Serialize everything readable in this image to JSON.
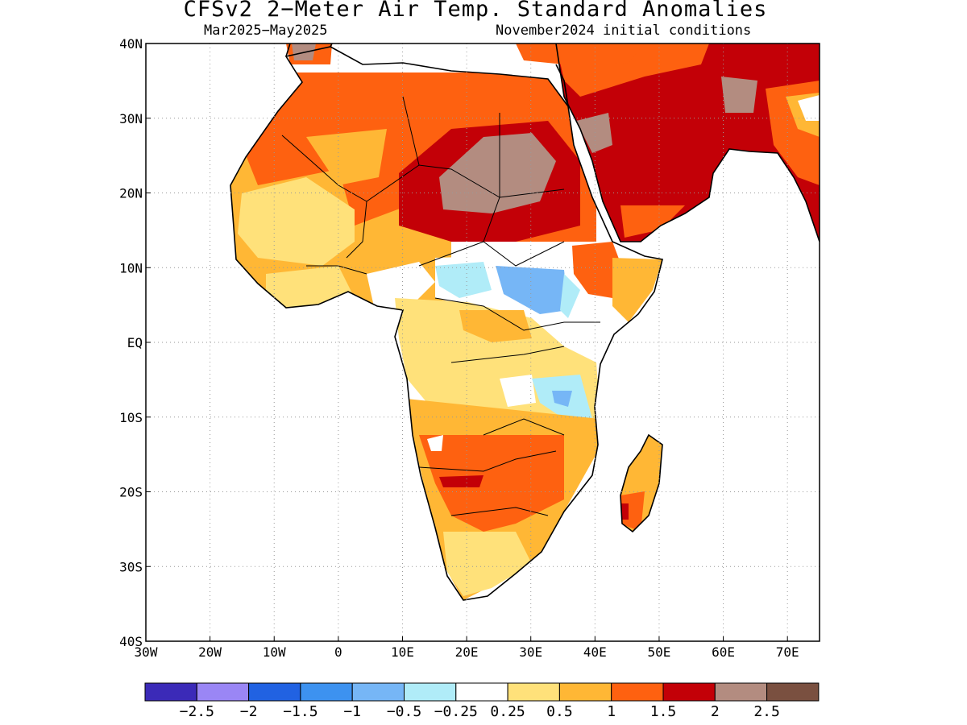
{
  "title": "CFSv2 2−Meter Air Temp. Standard Anomalies",
  "subtitle_left": "Mar2025−May2025",
  "subtitle_right": "November2024 initial conditions",
  "map": {
    "lon_range": [
      -30,
      75
    ],
    "lat_range": [
      -40,
      40
    ],
    "grid": true,
    "lon_ticks": [
      {
        "value": -30,
        "label": "30W"
      },
      {
        "value": -20,
        "label": "20W"
      },
      {
        "value": -10,
        "label": "10W"
      },
      {
        "value": 0,
        "label": "0"
      },
      {
        "value": 10,
        "label": "10E"
      },
      {
        "value": 20,
        "label": "20E"
      },
      {
        "value": 30,
        "label": "30E"
      },
      {
        "value": 40,
        "label": "40E"
      },
      {
        "value": 50,
        "label": "50E"
      },
      {
        "value": 60,
        "label": "60E"
      },
      {
        "value": 70,
        "label": "70E"
      }
    ],
    "lat_ticks": [
      {
        "value": 40,
        "label": "40N"
      },
      {
        "value": 30,
        "label": "30N"
      },
      {
        "value": 20,
        "label": "20N"
      },
      {
        "value": 10,
        "label": "10N"
      },
      {
        "value": 0,
        "label": "EQ"
      },
      {
        "value": -10,
        "label": "10S"
      },
      {
        "value": -20,
        "label": "20S"
      },
      {
        "value": -30,
        "label": "30S"
      },
      {
        "value": -40,
        "label": "40S"
      }
    ]
  },
  "colorbar": {
    "colors": [
      "#3b2ab8",
      "#9a86f5",
      "#2162e2",
      "#3d92f0",
      "#76b6f6",
      "#b0ecf8",
      "#ffffff",
      "#ffe17a",
      "#ffb735",
      "#fe6110",
      "#c30007",
      "#b38c80",
      "#7a5040"
    ],
    "labels": [
      "−2.5",
      "−2",
      "−1.5",
      "−1",
      "−0.5",
      "−0.25",
      "0.25",
      "0.5",
      "1",
      "1.5",
      "2",
      "2.5"
    ]
  }
}
